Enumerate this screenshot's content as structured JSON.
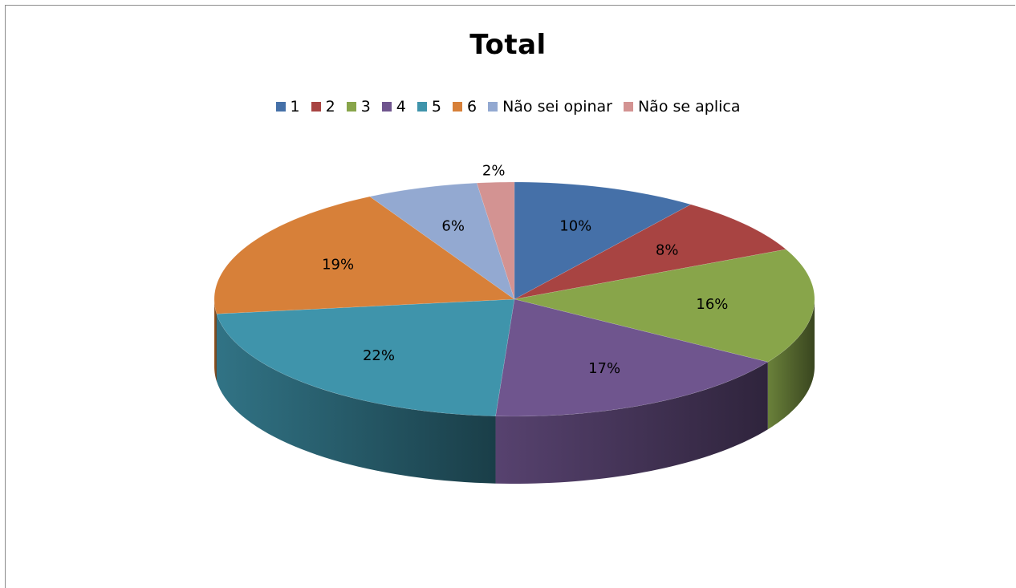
{
  "chart_data": {
    "type": "pie",
    "title": "Total",
    "legend_position": "top",
    "categories": [
      "1",
      "2",
      "3",
      "4",
      "5",
      "6",
      "Não sei opinar",
      "Não se aplica"
    ],
    "values": [
      10,
      8,
      16,
      17,
      22,
      19,
      6,
      2
    ],
    "labels": [
      "10%",
      "8%",
      "16%",
      "17%",
      "22%",
      "19%",
      "6%",
      "2%"
    ],
    "colors": [
      "#4570a8",
      "#a84442",
      "#88a54a",
      "#6f558e",
      "#3f94ab",
      "#d78039",
      "#93a9d1",
      "#d39392"
    ],
    "style": "3d"
  }
}
